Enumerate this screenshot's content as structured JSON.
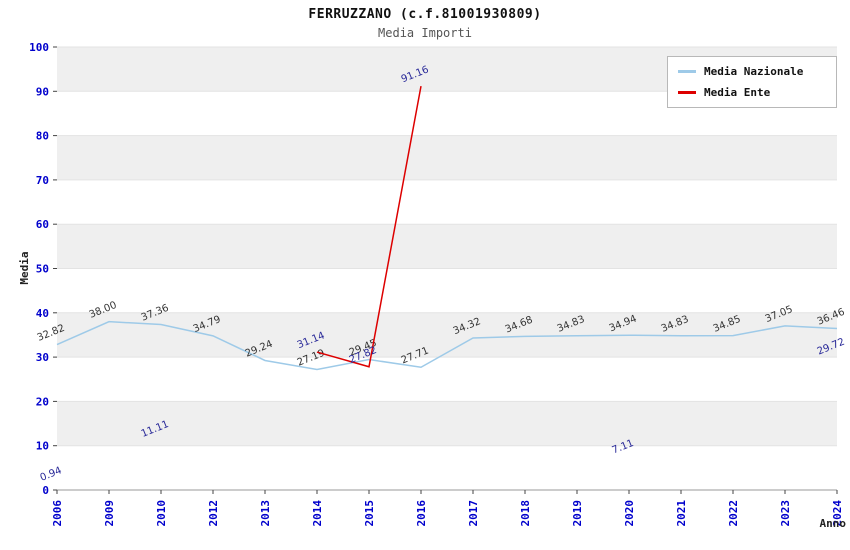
{
  "header": {
    "title": "FERRUZZANO (c.f.81001930809)",
    "subtitle": "Media Importi"
  },
  "chart_data": {
    "type": "line",
    "categories": [
      "2006",
      "2009",
      "2010",
      "2012",
      "2013",
      "2014",
      "2015",
      "2016",
      "2017",
      "2018",
      "2019",
      "2020",
      "2021",
      "2022",
      "2023",
      "2024"
    ],
    "series": [
      {
        "name": "Media Nazionale",
        "color": "#9ecae8",
        "label_color": "#333333",
        "values": [
          32.82,
          38.0,
          37.36,
          34.79,
          29.24,
          27.19,
          29.45,
          27.71,
          34.32,
          34.68,
          34.83,
          34.94,
          34.83,
          34.85,
          37.05,
          36.46
        ]
      },
      {
        "name": "Media Ente",
        "color": "#dd0000",
        "label_color": "#2a2a99",
        "values": [
          0.94,
          null,
          11.11,
          null,
          null,
          31.14,
          27.82,
          91.16,
          null,
          null,
          null,
          7.11,
          null,
          null,
          null,
          29.72
        ]
      }
    ],
    "xlabel": "Anno",
    "ylabel": "Media",
    "ylim": [
      0,
      100
    ],
    "ytick_step": 10,
    "grid": true,
    "legend_position": "top-right"
  },
  "colors": {
    "tick_label": "#0000cc",
    "band": "#efefef",
    "grid": "#e3e3e3",
    "axis": "#999999",
    "tick_mark": "#444444"
  }
}
